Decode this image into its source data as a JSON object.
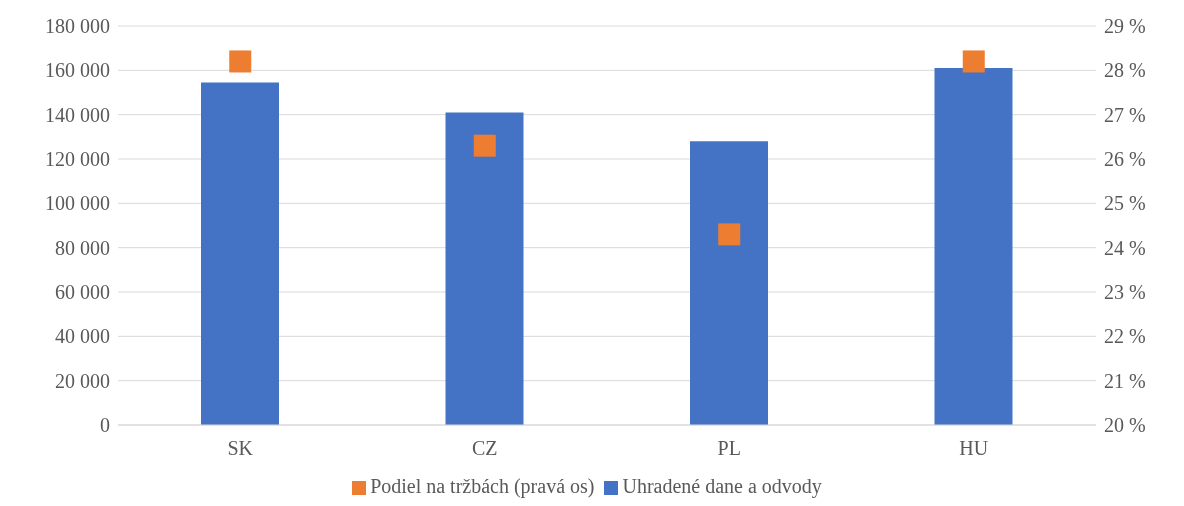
{
  "chart_data": {
    "type": "bar",
    "categories": [
      "SK",
      "CZ",
      "PL",
      "HU"
    ],
    "series": [
      {
        "name": "Uhradené dane a odvody",
        "color": "#4472c4",
        "values": [
          154500,
          141000,
          128000,
          161000
        ]
      },
      {
        "name": "Podiel na tržbách (pravá os)",
        "type": "scatter",
        "axis": "y2",
        "color": "#ed7d31",
        "values": [
          28.2,
          26.3,
          24.3,
          28.2
        ]
      }
    ],
    "ylim": [
      0,
      180000
    ],
    "yticks": [
      {
        "value": 0,
        "label": "0"
      },
      {
        "value": 20000,
        "label": "20 000"
      },
      {
        "value": 40000,
        "label": "40 000"
      },
      {
        "value": 60000,
        "label": "60 000"
      },
      {
        "value": 80000,
        "label": "80 000"
      },
      {
        "value": 100000,
        "label": "100 000"
      },
      {
        "value": 120000,
        "label": "120 000"
      },
      {
        "value": 140000,
        "label": "140 000"
      },
      {
        "value": 160000,
        "label": "160 000"
      },
      {
        "value": 180000,
        "label": "180 000"
      }
    ],
    "y2lim": [
      20,
      29
    ],
    "y2ticks": [
      {
        "value": 20,
        "label": "20 %"
      },
      {
        "value": 21,
        "label": "21 %"
      },
      {
        "value": 22,
        "label": "22 %"
      },
      {
        "value": 23,
        "label": "23 %"
      },
      {
        "value": 24,
        "label": "24 %"
      },
      {
        "value": 25,
        "label": "25 %"
      },
      {
        "value": 26,
        "label": "26 %"
      },
      {
        "value": 27,
        "label": "27 %"
      },
      {
        "value": 28,
        "label": "28 %"
      },
      {
        "value": 29,
        "label": "29 %"
      }
    ],
    "grid": "y",
    "legend": "bottom",
    "marker": "square"
  }
}
